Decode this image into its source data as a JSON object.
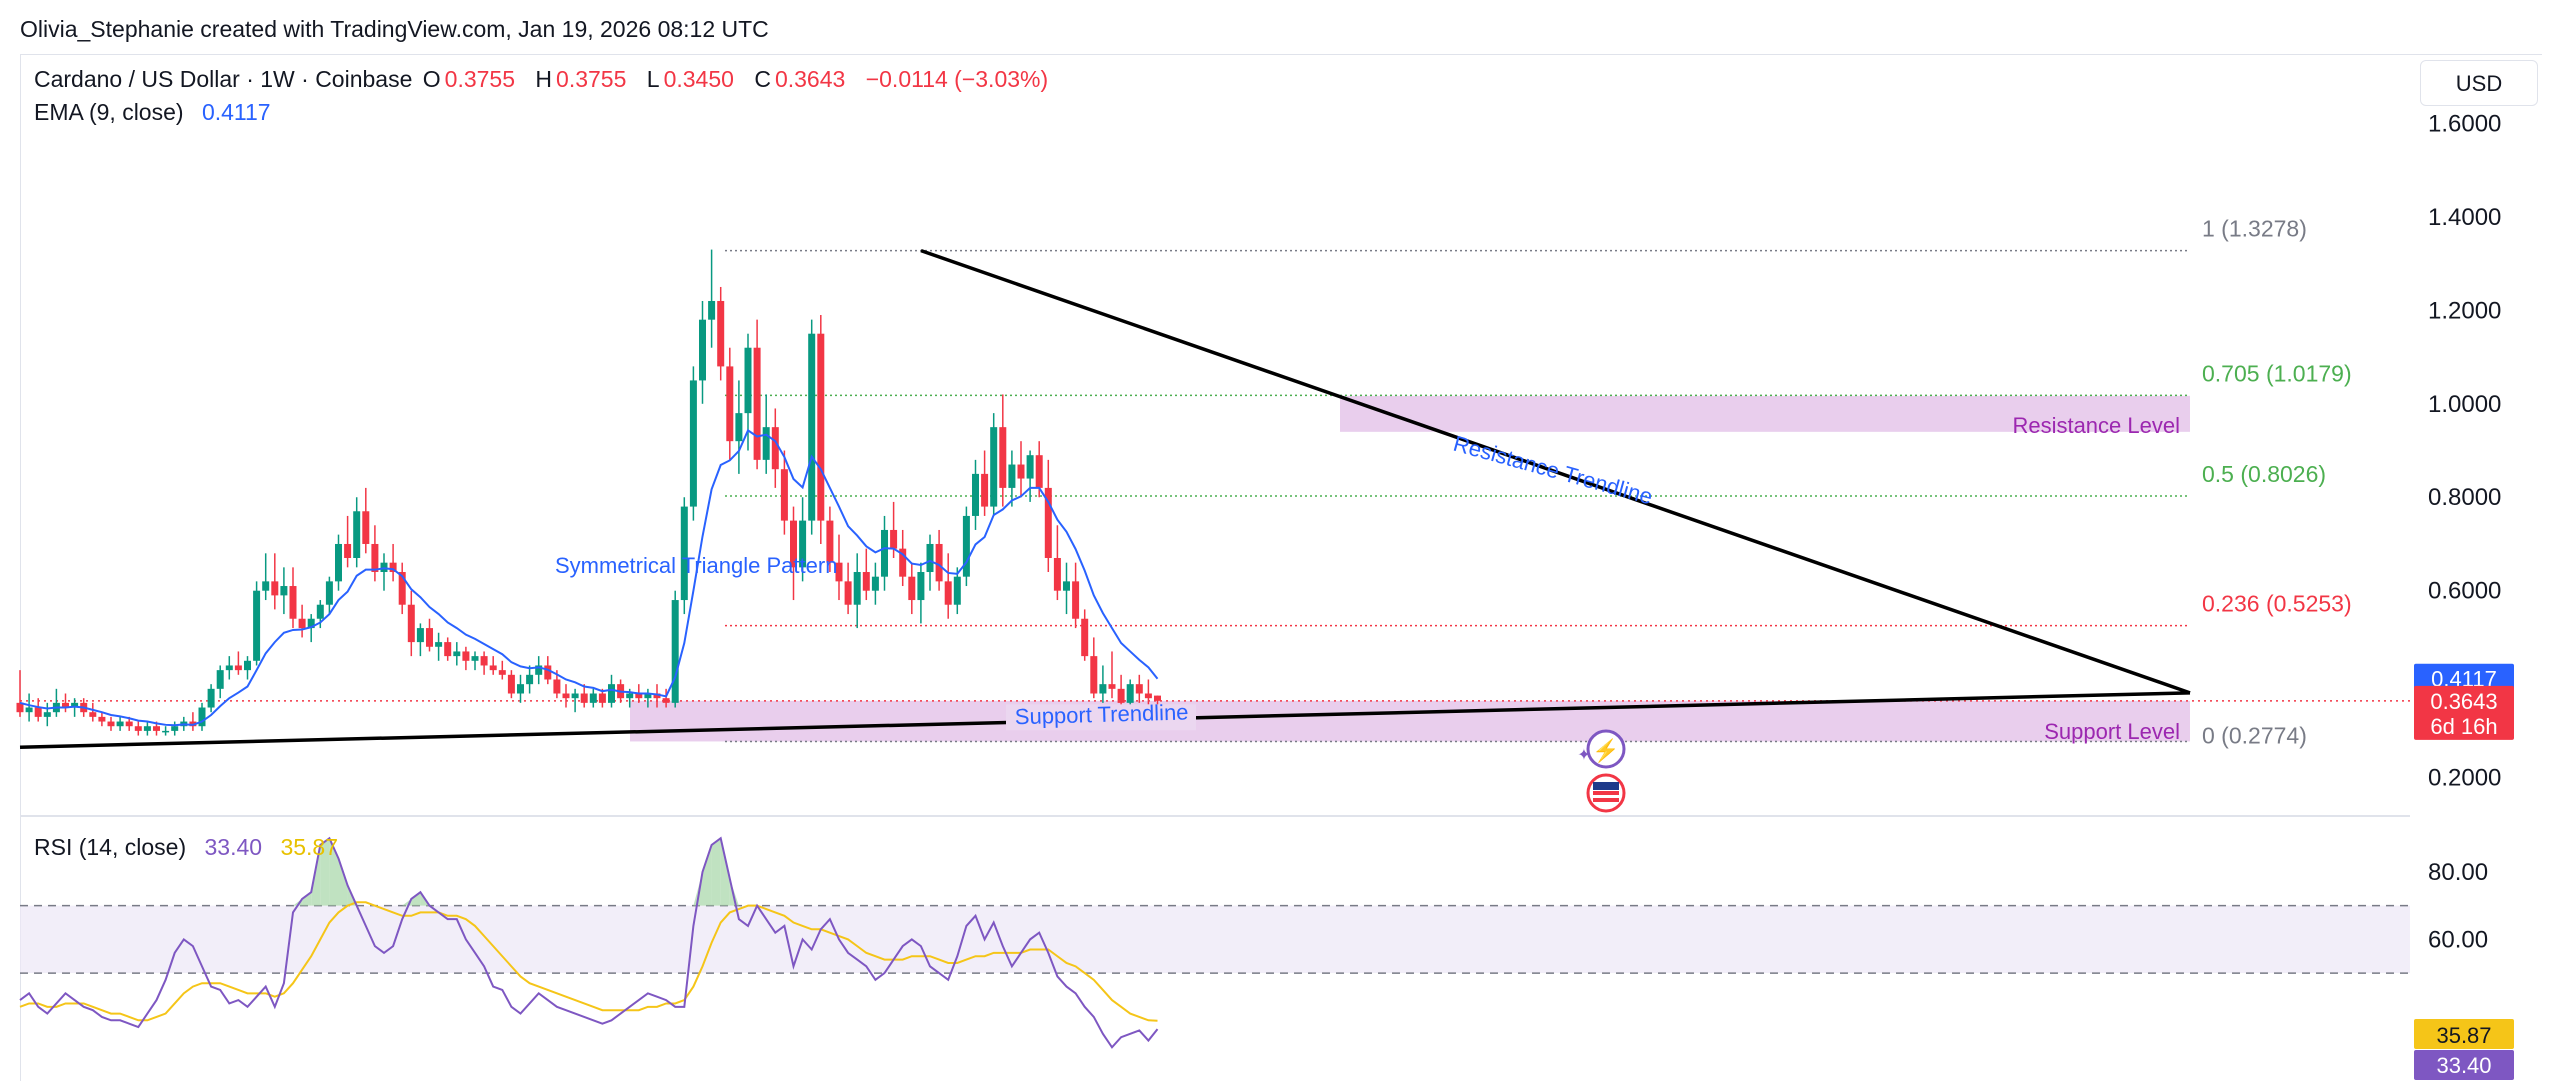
{
  "header": {
    "attribution": "Olivia_Stephanie created with TradingView.com, Jan 19, 2026 08:12 UTC"
  },
  "legend": {
    "symbol": "Cardano / US Dollar · 1W · Coinbase",
    "o_key": "O",
    "o_val": "0.3755",
    "h_key": "H",
    "h_val": "0.3755",
    "l_key": "L",
    "l_val": "0.3450",
    "c_key": "C",
    "c_val": "0.3643",
    "change": "−0.0114 (−3.03%)",
    "ema_label": "EMA (9, close)",
    "ema_val": "0.4117",
    "rsi_label": "RSI (14, close)",
    "rsi_val": "33.40",
    "rsi_ma_val": "35.87"
  },
  "currency_button": "USD",
  "colors": {
    "up": "#089981",
    "down": "#f23645",
    "ema": "#2962ff",
    "rsi": "#7e57c2",
    "rsi_ma": "#f5c518",
    "zone": "#e1bee7",
    "fib_gray": "#787b86",
    "fib_green": "#4caf50",
    "fib_red": "#f23645"
  },
  "chart_data": [
    {
      "type": "candlestick",
      "title": "Cardano / US Dollar · 1W · Coinbase",
      "ylim": [
        0.12,
        1.74
      ],
      "y_ticks": [
        "1.6000",
        "1.4000",
        "1.2000",
        "1.0000",
        "0.8000",
        "0.6000",
        "0.2000"
      ],
      "y_tick_values": [
        1.6,
        1.4,
        1.2,
        1.0,
        0.8,
        0.6,
        0.2
      ],
      "grid": false,
      "price_tags": [
        {
          "label": "0.4117",
          "value": 0.4117,
          "color": "#2962ff",
          "sub": ""
        },
        {
          "label": "0.3643",
          "value": 0.3643,
          "color": "#f23645",
          "sub": "6d 16h"
        }
      ],
      "candles": [
        [
          0.36,
          0.43,
          0.33,
          0.34
        ],
        [
          0.34,
          0.38,
          0.32,
          0.35
        ],
        [
          0.35,
          0.37,
          0.32,
          0.33
        ],
        [
          0.33,
          0.36,
          0.31,
          0.34
        ],
        [
          0.34,
          0.39,
          0.33,
          0.36
        ],
        [
          0.36,
          0.38,
          0.34,
          0.35
        ],
        [
          0.35,
          0.37,
          0.33,
          0.36
        ],
        [
          0.36,
          0.37,
          0.33,
          0.34
        ],
        [
          0.34,
          0.36,
          0.32,
          0.33
        ],
        [
          0.33,
          0.34,
          0.31,
          0.32
        ],
        [
          0.32,
          0.33,
          0.3,
          0.31
        ],
        [
          0.31,
          0.33,
          0.3,
          0.32
        ],
        [
          0.32,
          0.33,
          0.3,
          0.31
        ],
        [
          0.31,
          0.32,
          0.29,
          0.3
        ],
        [
          0.3,
          0.32,
          0.29,
          0.31
        ],
        [
          0.31,
          0.32,
          0.29,
          0.3
        ],
        [
          0.3,
          0.31,
          0.29,
          0.3
        ],
        [
          0.3,
          0.32,
          0.29,
          0.31
        ],
        [
          0.31,
          0.33,
          0.3,
          0.32
        ],
        [
          0.32,
          0.34,
          0.3,
          0.31
        ],
        [
          0.31,
          0.36,
          0.3,
          0.35
        ],
        [
          0.35,
          0.4,
          0.34,
          0.39
        ],
        [
          0.39,
          0.44,
          0.37,
          0.43
        ],
        [
          0.43,
          0.46,
          0.41,
          0.44
        ],
        [
          0.44,
          0.47,
          0.42,
          0.43
        ],
        [
          0.43,
          0.46,
          0.41,
          0.45
        ],
        [
          0.45,
          0.62,
          0.44,
          0.6
        ],
        [
          0.6,
          0.68,
          0.58,
          0.62
        ],
        [
          0.62,
          0.68,
          0.56,
          0.59
        ],
        [
          0.59,
          0.65,
          0.55,
          0.61
        ],
        [
          0.61,
          0.65,
          0.52,
          0.54
        ],
        [
          0.54,
          0.57,
          0.5,
          0.52
        ],
        [
          0.52,
          0.55,
          0.49,
          0.54
        ],
        [
          0.54,
          0.58,
          0.52,
          0.57
        ],
        [
          0.57,
          0.63,
          0.55,
          0.62
        ],
        [
          0.62,
          0.72,
          0.6,
          0.7
        ],
        [
          0.7,
          0.76,
          0.65,
          0.67
        ],
        [
          0.67,
          0.8,
          0.65,
          0.77
        ],
        [
          0.77,
          0.82,
          0.68,
          0.7
        ],
        [
          0.7,
          0.74,
          0.62,
          0.64
        ],
        [
          0.64,
          0.68,
          0.6,
          0.66
        ],
        [
          0.66,
          0.7,
          0.62,
          0.64
        ],
        [
          0.64,
          0.66,
          0.55,
          0.57
        ],
        [
          0.57,
          0.6,
          0.46,
          0.49
        ],
        [
          0.49,
          0.53,
          0.46,
          0.52
        ],
        [
          0.52,
          0.54,
          0.47,
          0.48
        ],
        [
          0.48,
          0.51,
          0.45,
          0.49
        ],
        [
          0.49,
          0.5,
          0.45,
          0.46
        ],
        [
          0.46,
          0.49,
          0.44,
          0.47
        ],
        [
          0.47,
          0.48,
          0.43,
          0.45
        ],
        [
          0.45,
          0.47,
          0.43,
          0.46
        ],
        [
          0.46,
          0.47,
          0.42,
          0.44
        ],
        [
          0.44,
          0.46,
          0.42,
          0.43
        ],
        [
          0.43,
          0.45,
          0.41,
          0.42
        ],
        [
          0.42,
          0.43,
          0.37,
          0.38
        ],
        [
          0.38,
          0.42,
          0.36,
          0.4
        ],
        [
          0.4,
          0.44,
          0.38,
          0.42
        ],
        [
          0.42,
          0.46,
          0.4,
          0.44
        ],
        [
          0.44,
          0.46,
          0.4,
          0.41
        ],
        [
          0.41,
          0.43,
          0.37,
          0.38
        ],
        [
          0.38,
          0.4,
          0.35,
          0.37
        ],
        [
          0.37,
          0.39,
          0.34,
          0.38
        ],
        [
          0.38,
          0.4,
          0.35,
          0.36
        ],
        [
          0.36,
          0.39,
          0.35,
          0.38
        ],
        [
          0.38,
          0.39,
          0.35,
          0.36
        ],
        [
          0.36,
          0.42,
          0.35,
          0.4
        ],
        [
          0.4,
          0.41,
          0.36,
          0.37
        ],
        [
          0.37,
          0.39,
          0.35,
          0.38
        ],
        [
          0.38,
          0.4,
          0.36,
          0.37
        ],
        [
          0.37,
          0.39,
          0.35,
          0.38
        ],
        [
          0.38,
          0.4,
          0.35,
          0.37
        ],
        [
          0.37,
          0.39,
          0.35,
          0.36
        ],
        [
          0.36,
          0.6,
          0.35,
          0.58
        ],
        [
          0.58,
          0.8,
          0.55,
          0.78
        ],
        [
          0.78,
          1.08,
          0.75,
          1.05
        ],
        [
          1.05,
          1.22,
          1.0,
          1.18
        ],
        [
          1.18,
          1.33,
          1.12,
          1.22
        ],
        [
          1.22,
          1.25,
          1.05,
          1.08
        ],
        [
          1.08,
          1.12,
          0.88,
          0.92
        ],
        [
          0.92,
          1.05,
          0.85,
          0.98
        ],
        [
          0.98,
          1.15,
          0.9,
          1.12
        ],
        [
          1.12,
          1.18,
          0.86,
          0.88
        ],
        [
          0.88,
          1.02,
          0.85,
          0.95
        ],
        [
          0.95,
          0.99,
          0.82,
          0.86
        ],
        [
          0.86,
          0.9,
          0.72,
          0.75
        ],
        [
          0.75,
          0.78,
          0.58,
          0.65
        ],
        [
          0.65,
          0.8,
          0.62,
          0.75
        ],
        [
          0.75,
          1.18,
          0.72,
          1.15
        ],
        [
          1.15,
          1.19,
          0.7,
          0.75
        ],
        [
          0.75,
          0.78,
          0.64,
          0.66
        ],
        [
          0.66,
          0.72,
          0.58,
          0.62
        ],
        [
          0.62,
          0.66,
          0.55,
          0.57
        ],
        [
          0.57,
          0.68,
          0.52,
          0.64
        ],
        [
          0.64,
          0.69,
          0.58,
          0.6
        ],
        [
          0.6,
          0.66,
          0.57,
          0.63
        ],
        [
          0.63,
          0.76,
          0.6,
          0.73
        ],
        [
          0.73,
          0.79,
          0.67,
          0.69
        ],
        [
          0.69,
          0.73,
          0.61,
          0.63
        ],
        [
          0.63,
          0.66,
          0.55,
          0.58
        ],
        [
          0.58,
          0.66,
          0.53,
          0.64
        ],
        [
          0.64,
          0.72,
          0.6,
          0.7
        ],
        [
          0.7,
          0.73,
          0.6,
          0.62
        ],
        [
          0.62,
          0.68,
          0.54,
          0.57
        ],
        [
          0.57,
          0.65,
          0.55,
          0.63
        ],
        [
          0.63,
          0.78,
          0.61,
          0.76
        ],
        [
          0.76,
          0.88,
          0.73,
          0.85
        ],
        [
          0.85,
          0.9,
          0.76,
          0.78
        ],
        [
          0.78,
          0.98,
          0.76,
          0.95
        ],
        [
          0.95,
          1.02,
          0.78,
          0.82
        ],
        [
          0.82,
          0.9,
          0.78,
          0.87
        ],
        [
          0.87,
          0.92,
          0.8,
          0.84
        ],
        [
          0.84,
          0.9,
          0.79,
          0.89
        ],
        [
          0.89,
          0.92,
          0.8,
          0.82
        ],
        [
          0.82,
          0.88,
          0.64,
          0.67
        ],
        [
          0.67,
          0.74,
          0.58,
          0.6
        ],
        [
          0.6,
          0.66,
          0.55,
          0.62
        ],
        [
          0.62,
          0.66,
          0.52,
          0.54
        ],
        [
          0.54,
          0.56,
          0.45,
          0.46
        ],
        [
          0.46,
          0.5,
          0.37,
          0.38
        ],
        [
          0.38,
          0.44,
          0.36,
          0.4
        ],
        [
          0.4,
          0.47,
          0.37,
          0.39
        ],
        [
          0.39,
          0.42,
          0.34,
          0.36
        ],
        [
          0.36,
          0.41,
          0.35,
          0.4
        ],
        [
          0.4,
          0.42,
          0.36,
          0.38
        ],
        [
          0.38,
          0.41,
          0.35,
          0.37
        ],
        [
          0.3755,
          0.3755,
          0.345,
          0.3643
        ]
      ],
      "ema": [
        0.36,
        0.355,
        0.351,
        0.348,
        0.35,
        0.35,
        0.352,
        0.35,
        0.345,
        0.34,
        0.334,
        0.331,
        0.327,
        0.322,
        0.32,
        0.316,
        0.313,
        0.312,
        0.314,
        0.313,
        0.32,
        0.334,
        0.353,
        0.37,
        0.382,
        0.395,
        0.43,
        0.466,
        0.49,
        0.51,
        0.516,
        0.517,
        0.522,
        0.532,
        0.55,
        0.58,
        0.598,
        0.632,
        0.645,
        0.645,
        0.648,
        0.646,
        0.631,
        0.603,
        0.586,
        0.565,
        0.55,
        0.532,
        0.52,
        0.506,
        0.497,
        0.486,
        0.475,
        0.464,
        0.447,
        0.438,
        0.434,
        0.436,
        0.431,
        0.421,
        0.41,
        0.404,
        0.395,
        0.392,
        0.385,
        0.388,
        0.384,
        0.383,
        0.38,
        0.38,
        0.378,
        0.374,
        0.415,
        0.488,
        0.6,
        0.716,
        0.817,
        0.869,
        0.879,
        0.899,
        0.943,
        0.93,
        0.934,
        0.92,
        0.886,
        0.839,
        0.821,
        0.887,
        0.86,
        0.82,
        0.78,
        0.738,
        0.718,
        0.695,
        0.682,
        0.691,
        0.69,
        0.678,
        0.658,
        0.655,
        0.664,
        0.655,
        0.638,
        0.636,
        0.661,
        0.699,
        0.715,
        0.762,
        0.774,
        0.793,
        0.802,
        0.82,
        0.82,
        0.79,
        0.752,
        0.726,
        0.689,
        0.643,
        0.59,
        0.552,
        0.52,
        0.488,
        0.47,
        0.452,
        0.436,
        0.4117
      ]
    },
    {
      "type": "line",
      "title": "RSI (14, close)",
      "ylim": [
        18,
        96
      ],
      "y_ticks": [
        "80.00",
        "60.00"
      ],
      "y_tick_values": [
        80,
        60
      ],
      "bands": {
        "upper": 70,
        "lower": 50
      },
      "series": [
        {
          "name": "RSI",
          "value_label": "33.40",
          "values": [
            42,
            44,
            40,
            38,
            41,
            44,
            42,
            40,
            39,
            37,
            36,
            36,
            35,
            34,
            38,
            42,
            48,
            56,
            60,
            58,
            52,
            46,
            45,
            41,
            42,
            40,
            43,
            46,
            40,
            47,
            68,
            72,
            74,
            88,
            90,
            84,
            76,
            70,
            64,
            58,
            56,
            58,
            66,
            72,
            74,
            70,
            68,
            66,
            66,
            60,
            56,
            52,
            46,
            45,
            40,
            38,
            41,
            44,
            42,
            40,
            39,
            38,
            37,
            36,
            35,
            36,
            38,
            40,
            42,
            44,
            43,
            42,
            40,
            40,
            64,
            80,
            88,
            90,
            78,
            66,
            64,
            70,
            66,
            62,
            64,
            52,
            60,
            57,
            63,
            66,
            60,
            56,
            54,
            52,
            48,
            50,
            54,
            58,
            60,
            58,
            52,
            50,
            48,
            55,
            64,
            67,
            60,
            65,
            58,
            52,
            56,
            60,
            62,
            56,
            49,
            46,
            44,
            40,
            37,
            32,
            28,
            31,
            32,
            33,
            30,
            33.4
          ]
        },
        {
          "name": "RSI-based MA",
          "value_label": "35.87",
          "values": [
            40,
            41,
            41,
            40,
            40,
            41,
            41,
            41,
            40,
            39,
            38,
            38,
            37,
            36,
            36,
            37,
            38,
            41,
            44,
            46,
            47,
            47,
            47,
            46,
            45,
            44,
            44,
            44,
            43,
            44,
            47,
            51,
            55,
            60,
            65,
            68,
            70,
            71,
            71,
            70,
            69,
            68,
            67,
            67,
            68,
            68,
            68,
            67,
            67,
            66,
            64,
            61,
            58,
            55,
            52,
            49,
            47,
            46,
            45,
            44,
            43,
            42,
            41,
            40,
            39,
            39,
            39,
            39,
            39,
            40,
            40,
            41,
            41,
            42,
            46,
            52,
            59,
            65,
            68,
            69,
            70,
            70,
            69,
            68,
            67,
            65,
            64,
            63,
            63,
            62,
            61,
            60,
            58,
            56,
            55,
            54,
            54,
            54,
            55,
            55,
            55,
            54,
            53,
            53,
            54,
            55,
            55,
            56,
            56,
            56,
            56,
            57,
            57,
            57,
            55,
            53,
            52,
            50,
            48,
            45,
            42,
            40,
            38,
            37,
            36,
            35.87
          ]
        }
      ]
    }
  ],
  "annotations": {
    "fib_levels": [
      {
        "label": "1 (1.3278)",
        "value": 1.3278,
        "color": "#787b86"
      },
      {
        "label": "0.705 (1.0179)",
        "value": 1.0179,
        "color": "#4caf50"
      },
      {
        "label": "0.5 (0.8026)",
        "value": 0.8026,
        "color": "#4caf50"
      },
      {
        "label": "0.236 (0.5253)",
        "value": 0.5253,
        "color": "#f23645"
      },
      {
        "label": "0 (0.2774)",
        "value": 0.2774,
        "color": "#787b86"
      }
    ],
    "resistance_level": "Resistance Level",
    "support_level": "Support Level",
    "resistance_trendline": "Resistance Trendline",
    "support_trendline": "Support Trendline",
    "pattern": "Symmetrical Triangle Pattern"
  }
}
